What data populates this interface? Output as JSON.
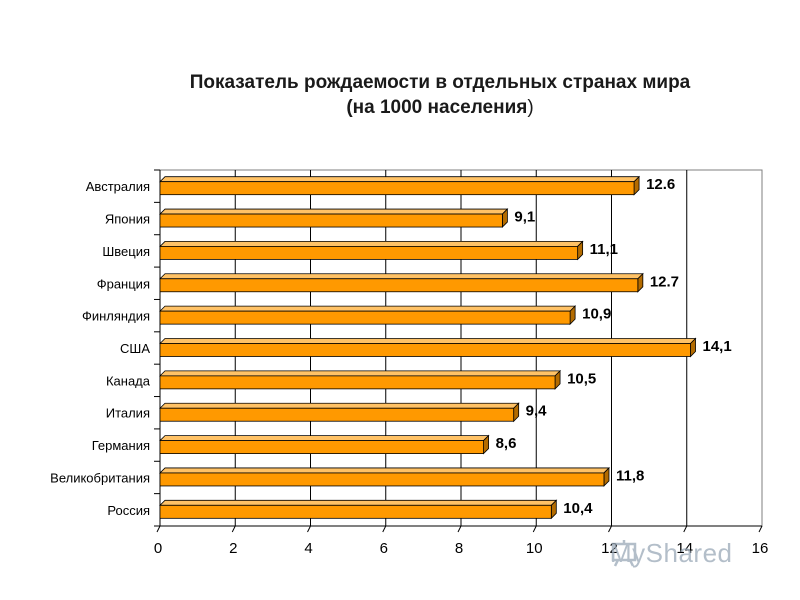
{
  "chart_data": {
    "type": "bar",
    "orientation": "horizontal",
    "title_line1": "Показатель рождаемости в отдельных странах мира",
    "title_line2": "(на 1000 населения",
    "title_line2_close": ")",
    "categories": [
      "Австралия",
      "Япония",
      "Швеция",
      "Франция",
      "Финляндия",
      "США",
      "Канада",
      "Италия",
      "Германия",
      "Великобритания",
      "Россия"
    ],
    "values": [
      12.6,
      9.1,
      11.1,
      12.7,
      10.9,
      14.1,
      10.5,
      9.4,
      8.6,
      11.8,
      10.4
    ],
    "value_labels": [
      "12.6",
      "9,1",
      "11,1",
      "12.7",
      "10,9",
      "14,1",
      "10,5",
      "9,4",
      "8,6",
      "11,8",
      "10,4"
    ],
    "xlim": [
      0,
      16
    ],
    "xticks": [
      "0",
      "2",
      "4",
      "6",
      "8",
      "10",
      "12",
      "14",
      "16"
    ],
    "grid": true,
    "colors": {
      "bar_front": "#FF9900",
      "bar_top": "#FFC266",
      "bar_side": "#B36B00",
      "bar_outline": "#000000",
      "grid": "#000000"
    }
  },
  "watermark": {
    "text": "MyShared"
  }
}
